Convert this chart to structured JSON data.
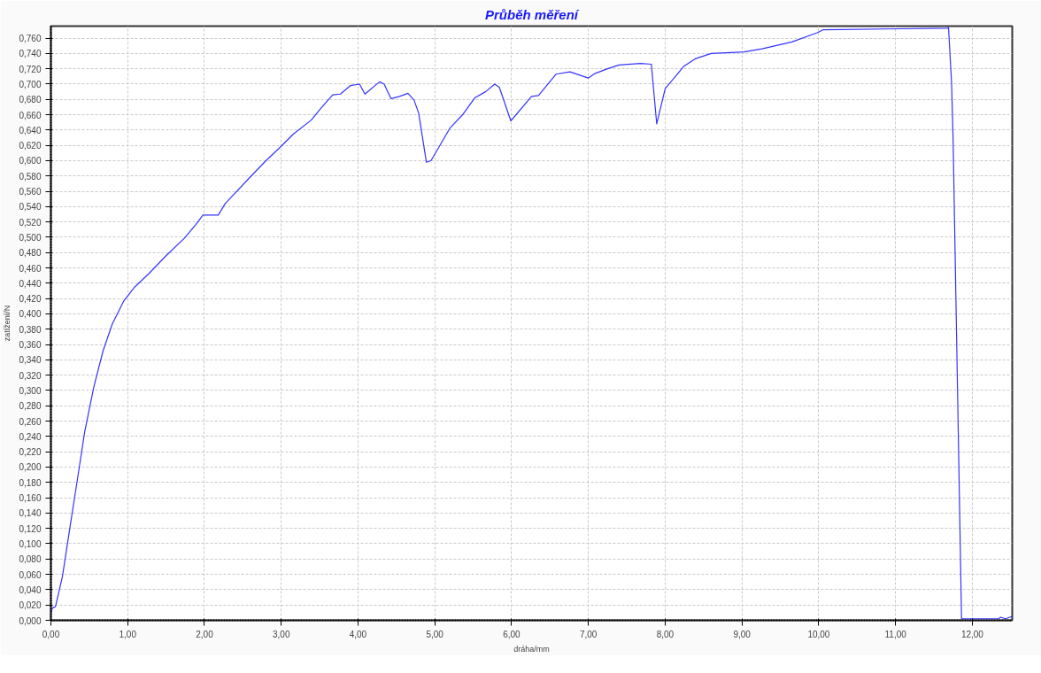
{
  "chart_data": {
    "type": "line",
    "title": "Průběh měření",
    "xlabel": "dráha/mm",
    "ylabel": "zatížení/N",
    "x": [
      0,
      0.02,
      0.06,
      0.15,
      0.24,
      0.35,
      0.44,
      0.56,
      0.68,
      0.8,
      0.95,
      1.09,
      1.27,
      1.5,
      1.74,
      1.89,
      1.98,
      2.18,
      2.27,
      2.57,
      2.8,
      2.98,
      3.16,
      3.39,
      3.52,
      3.67,
      3.77,
      3.9,
      4.02,
      4.09,
      4.28,
      4.34,
      4.43,
      4.54,
      4.65,
      4.73,
      4.79,
      4.89,
      4.95,
      5.2,
      5.37,
      5.52,
      5.66,
      5.78,
      5.84,
      5.99,
      6.26,
      6.35,
      6.58,
      6.76,
      7.0,
      7.09,
      7.25,
      7.4,
      7.68,
      7.82,
      7.89,
      8.0,
      8.2,
      8.24,
      8.39,
      8.6,
      9.03,
      9.26,
      9.65,
      9.98,
      10.06,
      11.68,
      11.69,
      11.73,
      11.75,
      11.86,
      11.95,
      12.19,
      12.34,
      12.37,
      12.43,
      12.49,
      12.52
    ],
    "series": [
      {
        "color": "#3333ff",
        "values": [
          0.01,
          0.016,
          0.018,
          0.057,
          0.116,
          0.187,
          0.246,
          0.305,
          0.352,
          0.387,
          0.417,
          0.435,
          0.452,
          0.476,
          0.499,
          0.517,
          0.529,
          0.529,
          0.544,
          0.576,
          0.6,
          0.617,
          0.635,
          0.653,
          0.669,
          0.686,
          0.687,
          0.698,
          0.7,
          0.687,
          0.703,
          0.7,
          0.681,
          0.684,
          0.688,
          0.679,
          0.662,
          0.598,
          0.6,
          0.643,
          0.661,
          0.682,
          0.69,
          0.7,
          0.696,
          0.652,
          0.684,
          0.685,
          0.713,
          0.716,
          0.708,
          0.714,
          0.72,
          0.725,
          0.727,
          0.726,
          0.648,
          0.694,
          0.718,
          0.723,
          0.733,
          0.74,
          0.742,
          0.746,
          0.755,
          0.767,
          0.771,
          0.773,
          0.774,
          0.702,
          0.627,
          0.002,
          0.002,
          0.002,
          0.002,
          0.004,
          0.002,
          0.004,
          0.005
        ]
      }
    ],
    "xlim": [
      0,
      12.52
    ],
    "ylim": [
      0,
      0.7757
    ],
    "xticks": [
      {
        "value": 0,
        "label": "0,00"
      },
      {
        "value": 1,
        "label": "1,00"
      },
      {
        "value": 2,
        "label": "2,00"
      },
      {
        "value": 3,
        "label": "3,00"
      },
      {
        "value": 4,
        "label": "4,00"
      },
      {
        "value": 5,
        "label": "5,00"
      },
      {
        "value": 6,
        "label": "6,00"
      },
      {
        "value": 7,
        "label": "7,00"
      },
      {
        "value": 8,
        "label": "8,00"
      },
      {
        "value": 9,
        "label": "9,00"
      },
      {
        "value": 10,
        "label": "10,00"
      },
      {
        "value": 11,
        "label": "11,00"
      },
      {
        "value": 12,
        "label": "12,00"
      }
    ],
    "yticks": [
      {
        "value": 0,
        "label": "0,000"
      },
      {
        "value": 0.02,
        "label": "0,020"
      },
      {
        "value": 0.04,
        "label": "0,040"
      },
      {
        "value": 0.06,
        "label": "0,060"
      },
      {
        "value": 0.08,
        "label": "0,080"
      },
      {
        "value": 0.1,
        "label": "0,100"
      },
      {
        "value": 0.12,
        "label": "0,120"
      },
      {
        "value": 0.14,
        "label": "0,140"
      },
      {
        "value": 0.16,
        "label": "0,160"
      },
      {
        "value": 0.18,
        "label": "0,180"
      },
      {
        "value": 0.2,
        "label": "0,200"
      },
      {
        "value": 0.22,
        "label": "0,220"
      },
      {
        "value": 0.24,
        "label": "0,240"
      },
      {
        "value": 0.26,
        "label": "0,260"
      },
      {
        "value": 0.28,
        "label": "0,280"
      },
      {
        "value": 0.3,
        "label": "0,300"
      },
      {
        "value": 0.32,
        "label": "0,320"
      },
      {
        "value": 0.34,
        "label": "0,340"
      },
      {
        "value": 0.36,
        "label": "0,360"
      },
      {
        "value": 0.38,
        "label": "0,380"
      },
      {
        "value": 0.4,
        "label": "0,400"
      },
      {
        "value": 0.42,
        "label": "0,420"
      },
      {
        "value": 0.44,
        "label": "0,440"
      },
      {
        "value": 0.46,
        "label": "0,460"
      },
      {
        "value": 0.48,
        "label": "0,480"
      },
      {
        "value": 0.5,
        "label": "0,500"
      },
      {
        "value": 0.52,
        "label": "0,520"
      },
      {
        "value": 0.54,
        "label": "0,540"
      },
      {
        "value": 0.56,
        "label": "0,560"
      },
      {
        "value": 0.58,
        "label": "0,580"
      },
      {
        "value": 0.6,
        "label": "0,600"
      },
      {
        "value": 0.62,
        "label": "0,620"
      },
      {
        "value": 0.64,
        "label": "0,640"
      },
      {
        "value": 0.66,
        "label": "0,660"
      },
      {
        "value": 0.68,
        "label": "0,680"
      },
      {
        "value": 0.7,
        "label": "0,700"
      },
      {
        "value": 0.72,
        "label": "0,720"
      },
      {
        "value": 0.74,
        "label": "0,740"
      },
      {
        "value": 0.76,
        "label": "0,760"
      }
    ],
    "grid": true,
    "line_style": "solid",
    "marker": "none"
  }
}
